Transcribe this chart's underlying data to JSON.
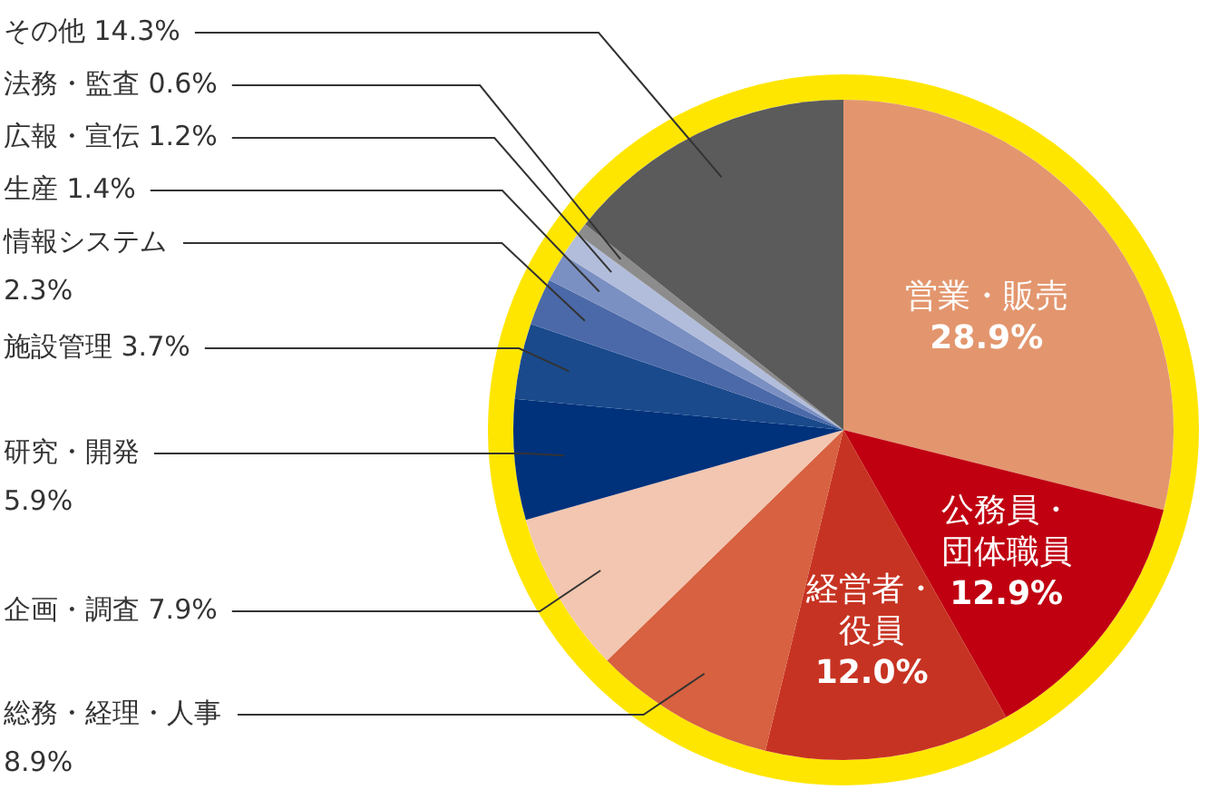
{
  "chart_data": {
    "type": "pie",
    "categories": [
      "営業・販売",
      "公務員・団体職員",
      "経営者・役員",
      "総務・経理・人事",
      "企画・調査",
      "研究・開発",
      "施設管理",
      "情報システム",
      "生産",
      "広報・宣伝",
      "法務・監査",
      "その他"
    ],
    "values": [
      28.9,
      12.9,
      12.0,
      8.9,
      7.9,
      5.9,
      3.7,
      2.3,
      1.4,
      1.2,
      0.6,
      14.3
    ],
    "colors": [
      "#e3966e",
      "#c00011",
      "#c73322",
      "#d76140",
      "#f2c6b0",
      "#00317b",
      "#1a4a8c",
      "#4b69a8",
      "#7b90c2",
      "#b2bddb",
      "#8c8c8c",
      "#5b5b5b"
    ],
    "value_labels": [
      "28.9%",
      "12.9%",
      "12.0%",
      "8.9%",
      "7.9%",
      "5.9%",
      "3.7%",
      "2.3%",
      "1.4%",
      "1.2%",
      "0.6%",
      "14.3%"
    ]
  }
}
